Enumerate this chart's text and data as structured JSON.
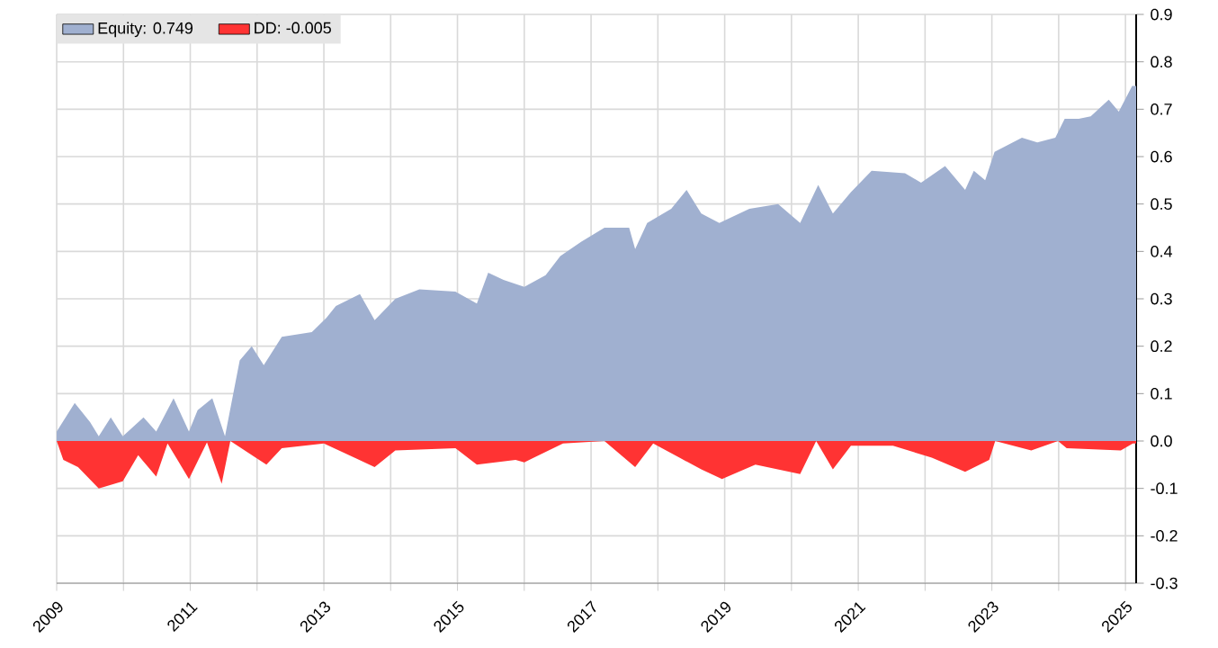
{
  "chart_data": {
    "type": "area",
    "xlim": [
      2009,
      2025.16
    ],
    "xticks": [
      2009,
      {
        "value": 2010,
        "label": null
      },
      2011,
      {
        "value": 2012,
        "label": null
      },
      2013,
      {
        "value": 2014,
        "label": null
      },
      2015,
      {
        "value": 2016,
        "label": null
      },
      2017,
      {
        "value": 2018,
        "label": null
      },
      2019,
      {
        "value": 2020,
        "label": null
      },
      2021,
      {
        "value": 2022,
        "label": null
      },
      2023,
      {
        "value": 2024,
        "label": null
      },
      2025
    ],
    "ylim": [
      -0.3,
      0.9
    ],
    "yticks": [
      -0.3,
      -0.2,
      -0.1,
      {
        "value": 0,
        "label": "0.0"
      },
      0.1,
      0.2,
      0.3,
      0.4,
      0.5,
      0.6,
      0.7,
      0.8,
      0.9
    ],
    "grid": true,
    "legend": "top left",
    "series": [
      {
        "name": "Equity: 0.749",
        "color": "#a0b0d0",
        "x": [
          2009.0,
          2009.27,
          2009.5,
          2009.63,
          2009.81,
          2009.99,
          2010.3,
          2010.49,
          2010.75,
          2010.98,
          2011.11,
          2011.33,
          2011.52,
          2011.74,
          2011.92,
          2012.1,
          2012.37,
          2012.82,
          2013.04,
          2013.18,
          2013.54,
          2013.76,
          2014.07,
          2014.43,
          2014.97,
          2015.29,
          2015.46,
          2015.69,
          2016.0,
          2016.32,
          2016.54,
          2016.85,
          2017.2,
          2017.57,
          2017.66,
          2017.84,
          2018.2,
          2018.43,
          2018.65,
          2018.92,
          2019.37,
          2019.8,
          2020.13,
          2020.4,
          2020.62,
          2020.89,
          2021.2,
          2021.7,
          2021.94,
          2022.3,
          2022.6,
          2022.73,
          2022.9,
          2023.04,
          2023.45,
          2023.68,
          2023.95,
          2024.09,
          2024.3,
          2024.48,
          2024.75,
          2024.9,
          2025.1,
          2025.16
        ],
        "values": [
          0.02,
          0.08,
          0.04,
          0.01,
          0.05,
          0.01,
          0.05,
          0.02,
          0.09,
          0.02,
          0.065,
          0.09,
          0.01,
          0.17,
          0.2,
          0.16,
          0.22,
          0.23,
          0.26,
          0.285,
          0.31,
          0.255,
          0.3,
          0.32,
          0.315,
          0.29,
          0.355,
          0.34,
          0.325,
          0.35,
          0.39,
          0.42,
          0.45,
          0.45,
          0.405,
          0.46,
          0.49,
          0.53,
          0.48,
          0.46,
          0.49,
          0.5,
          0.46,
          0.54,
          0.48,
          0.525,
          0.57,
          0.565,
          0.545,
          0.58,
          0.53,
          0.57,
          0.55,
          0.61,
          0.64,
          0.63,
          0.64,
          0.68,
          0.68,
          0.685,
          0.72,
          0.695,
          0.749,
          0.749
        ]
      },
      {
        "name": "DD: -0.005",
        "color": "#ff3333",
        "x": [
          2009.0,
          2009.1,
          2009.32,
          2009.63,
          2009.99,
          2010.22,
          2010.49,
          2010.66,
          2010.98,
          2011.25,
          2011.47,
          2011.6,
          2012.14,
          2012.37,
          2013.0,
          2013.76,
          2014.07,
          2014.97,
          2015.29,
          2015.87,
          2016.0,
          2016.58,
          2017.2,
          2017.66,
          2017.93,
          2018.65,
          2018.96,
          2019.46,
          2020.13,
          2020.37,
          2020.62,
          2020.89,
          2021.52,
          2022.1,
          2022.6,
          2022.96,
          2023.05,
          2023.59,
          2023.99,
          2024.12,
          2024.93,
          2025.11,
          2025.16
        ],
        "values": [
          0,
          -0.04,
          -0.055,
          -0.1,
          -0.085,
          -0.03,
          -0.075,
          -0.005,
          -0.08,
          -0.003,
          -0.09,
          0,
          -0.05,
          -0.015,
          -0.005,
          -0.055,
          -0.02,
          -0.015,
          -0.05,
          -0.04,
          -0.045,
          -0.005,
          0,
          -0.055,
          -0.005,
          -0.06,
          -0.08,
          -0.05,
          -0.07,
          0,
          -0.06,
          -0.01,
          -0.01,
          -0.035,
          -0.065,
          -0.04,
          0,
          -0.02,
          0,
          -0.015,
          -0.02,
          -0.005,
          -0.005
        ]
      }
    ]
  }
}
